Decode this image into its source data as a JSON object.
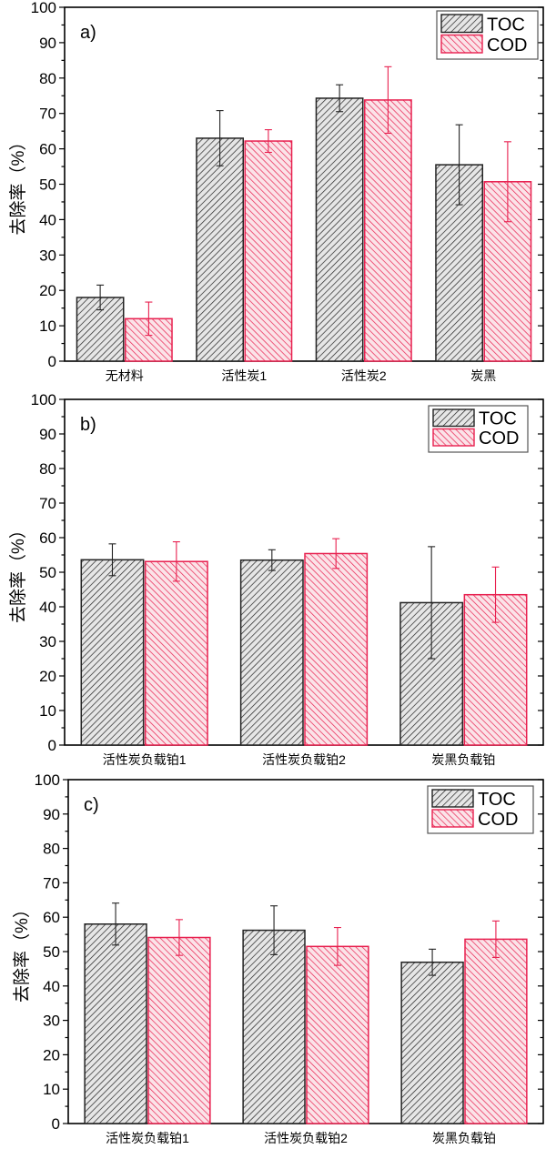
{
  "colors": {
    "TOC": "#222222",
    "COD": "#e8204f",
    "toc_fill": "#e6e6e6",
    "cod_fill": "#fbe3e8"
  },
  "chart_data": [
    {
      "type": "bar",
      "panel_label": "a)",
      "ylabel": "去除率（%）",
      "ylim": [
        0,
        100
      ],
      "yticks": [
        "0",
        "10",
        "20",
        "30",
        "40",
        "50",
        "60",
        "70",
        "80",
        "90",
        "100"
      ],
      "legend": "top-right",
      "categories": [
        "无材料",
        "活性炭1",
        "活性炭2",
        "炭黑"
      ],
      "series": [
        {
          "name": "TOC",
          "values": [
            18.0,
            63.0,
            74.3,
            55.5
          ],
          "errors": [
            3.5,
            7.8,
            3.8,
            11.3
          ]
        },
        {
          "name": "COD",
          "values": [
            12.0,
            62.2,
            73.8,
            50.7
          ],
          "errors": [
            4.7,
            3.2,
            9.4,
            11.3
          ]
        }
      ]
    },
    {
      "type": "bar",
      "panel_label": "b)",
      "ylabel": "去除率（%）",
      "ylim": [
        0,
        100
      ],
      "yticks": [
        "0",
        "10",
        "20",
        "30",
        "40",
        "50",
        "60",
        "70",
        "80",
        "90",
        "100"
      ],
      "legend": "top-right",
      "categories": [
        "活性炭负载铂1",
        "活性炭负载铂2",
        "炭黑负载铂"
      ],
      "series": [
        {
          "name": "TOC",
          "values": [
            53.6,
            53.5,
            41.2
          ],
          "errors": [
            4.6,
            3.0,
            16.2
          ]
        },
        {
          "name": "COD",
          "values": [
            53.1,
            55.4,
            43.5
          ],
          "errors": [
            5.7,
            4.3,
            8.0
          ]
        }
      ]
    },
    {
      "type": "bar",
      "panel_label": "c)",
      "ylabel": "去除率（%）",
      "ylim": [
        0,
        100
      ],
      "yticks": [
        "0",
        "10",
        "20",
        "30",
        "40",
        "50",
        "60",
        "70",
        "80",
        "90",
        "100"
      ],
      "legend": "top-right",
      "categories": [
        "活性炭负载铂1",
        "活性炭负载铂2",
        "炭黑负载铂"
      ],
      "series": [
        {
          "name": "TOC",
          "values": [
            58.0,
            56.2,
            46.9
          ],
          "errors": [
            6.1,
            7.1,
            3.8
          ]
        },
        {
          "name": "COD",
          "values": [
            54.1,
            51.5,
            53.6
          ],
          "errors": [
            5.2,
            5.5,
            5.3
          ]
        }
      ]
    }
  ]
}
